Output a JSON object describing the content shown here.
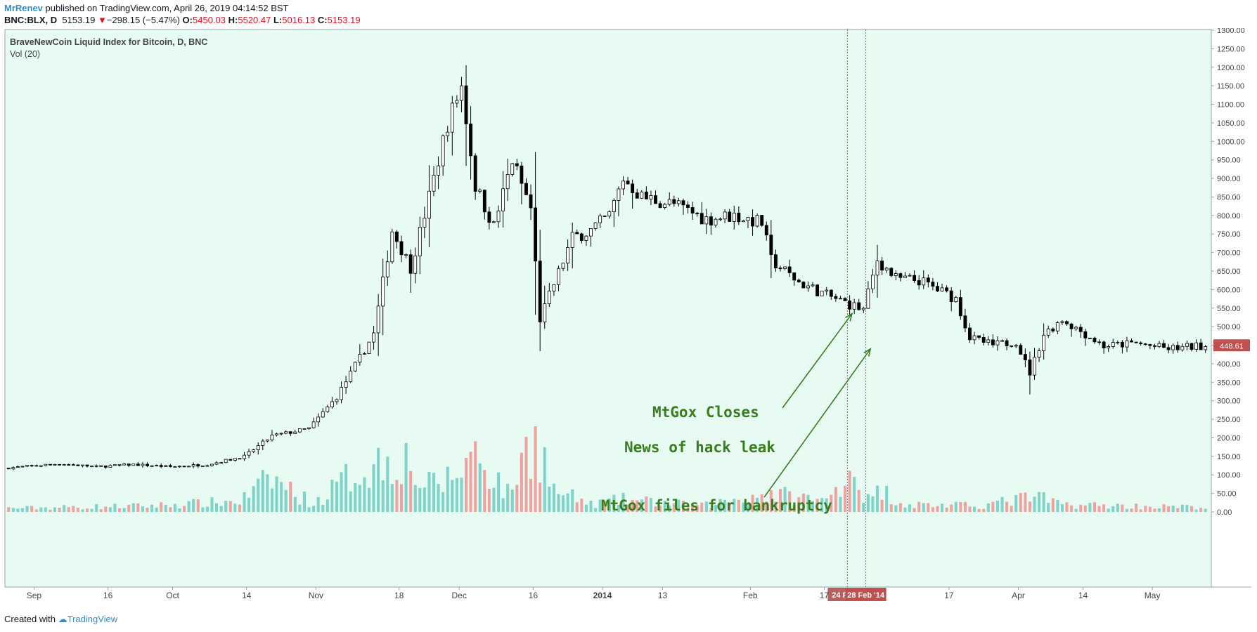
{
  "header": {
    "username": "MrRenev",
    "published": "published on TradingView.com, April 26, 2019 04:14:52 BST",
    "symbol": "BNC:BLX, D",
    "last": "5153.19",
    "down_arrow": "▼",
    "change": "−298.15 (−5.47%)",
    "o_label": "O:",
    "o_value": "5450.03",
    "h_label": "H:",
    "h_value": "5520.47",
    "l_label": "L:",
    "l_value": "5016.13",
    "c_label": "C:",
    "c_value": "5153.19"
  },
  "footer": {
    "created_with": "Created with",
    "brand": "TradingView"
  },
  "colors": {
    "background": "#e8fbf3",
    "up_volume": "#7fd3c8",
    "down_volume": "#eea3a0",
    "annotation": "#3a7d1f",
    "price_tag": "#c0504d"
  },
  "chart_data": {
    "type": "candlestick",
    "title": "BraveNewCoin Liquid Index for Bitcoin, D, BNC",
    "volume_label": "Vol (20)",
    "y_ticks": [
      "1300.00",
      "1250.00",
      "1200.00",
      "1150.00",
      "1100.00",
      "1050.00",
      "1000.00",
      "950.00",
      "900.00",
      "850.00",
      "800.00",
      "750.00",
      "700.00",
      "650.00",
      "600.00",
      "550.00",
      "500.00",
      "450.00",
      "400.00",
      "350.00",
      "300.00",
      "250.00",
      "200.00",
      "150.00",
      "100.00",
      "50.00",
      "0.00"
    ],
    "ylim": [
      0,
      1300
    ],
    "x_ticks": [
      "Sep",
      "16",
      "Oct",
      "14",
      "Nov",
      "18",
      "Dec",
      "16",
      "2014",
      "13",
      "Feb",
      "17",
      "17",
      "Apr",
      "14",
      "May"
    ],
    "x_tick_days": [
      6,
      22,
      36,
      52,
      67,
      85,
      98,
      114,
      129,
      142,
      161,
      177,
      204,
      219,
      233,
      248
    ],
    "x_range_days": [
      0,
      260
    ],
    "last_price": "448.61",
    "vlines": [
      {
        "day": 182,
        "label": "24 F"
      },
      {
        "day": 186,
        "label": "28 Feb '14"
      }
    ],
    "annotations": [
      {
        "text": "MtGox Closes",
        "arrow_to": {
          "day": 183,
          "price": 535
        }
      },
      {
        "text": "News of hack leak"
      },
      {
        "text": "MtGox files for bankruptcy",
        "arrow_to": {
          "day": 187,
          "price": 440
        }
      }
    ],
    "price_anchors": [
      [
        0,
        118
      ],
      [
        12,
        130
      ],
      [
        20,
        122
      ],
      [
        28,
        128
      ],
      [
        36,
        122
      ],
      [
        44,
        128
      ],
      [
        52,
        150
      ],
      [
        58,
        205
      ],
      [
        66,
        225
      ],
      [
        72,
        310
      ],
      [
        80,
        480
      ],
      [
        84,
        760
      ],
      [
        88,
        660
      ],
      [
        92,
        850
      ],
      [
        96,
        1050
      ],
      [
        99,
        1150
      ],
      [
        102,
        880
      ],
      [
        106,
        770
      ],
      [
        110,
        950
      ],
      [
        114,
        820
      ],
      [
        116,
        520
      ],
      [
        119,
        615
      ],
      [
        123,
        740
      ],
      [
        127,
        760
      ],
      [
        131,
        800
      ],
      [
        134,
        900
      ],
      [
        138,
        850
      ],
      [
        145,
        830
      ],
      [
        152,
        790
      ],
      [
        158,
        800
      ],
      [
        164,
        780
      ],
      [
        166,
        680
      ],
      [
        172,
        620
      ],
      [
        178,
        585
      ],
      [
        181,
        570
      ],
      [
        183,
        560
      ],
      [
        186,
        545
      ],
      [
        189,
        680
      ],
      [
        193,
        630
      ],
      [
        198,
        625
      ],
      [
        202,
        600
      ],
      [
        206,
        575
      ],
      [
        209,
        470
      ],
      [
        214,
        450
      ],
      [
        219,
        460
      ],
      [
        222,
        375
      ],
      [
        225,
        480
      ],
      [
        229,
        520
      ],
      [
        234,
        480
      ],
      [
        238,
        448
      ],
      [
        245,
        455
      ],
      [
        252,
        440
      ],
      [
        259,
        448
      ]
    ],
    "volume_anchors": [
      [
        0,
        12
      ],
      [
        30,
        20
      ],
      [
        50,
        35
      ],
      [
        57,
        110
      ],
      [
        66,
        25
      ],
      [
        75,
        130
      ],
      [
        85,
        190
      ],
      [
        90,
        80
      ],
      [
        96,
        110
      ],
      [
        101,
        200
      ],
      [
        108,
        60
      ],
      [
        114,
        260
      ],
      [
        118,
        70
      ],
      [
        126,
        25
      ],
      [
        133,
        40
      ],
      [
        150,
        20
      ],
      [
        164,
        60
      ],
      [
        170,
        50
      ],
      [
        177,
        35
      ],
      [
        182,
        150
      ],
      [
        186,
        40
      ],
      [
        189,
        70
      ],
      [
        194,
        25
      ],
      [
        210,
        20
      ],
      [
        222,
        50
      ],
      [
        228,
        25
      ],
      [
        240,
        20
      ],
      [
        259,
        15
      ]
    ]
  }
}
